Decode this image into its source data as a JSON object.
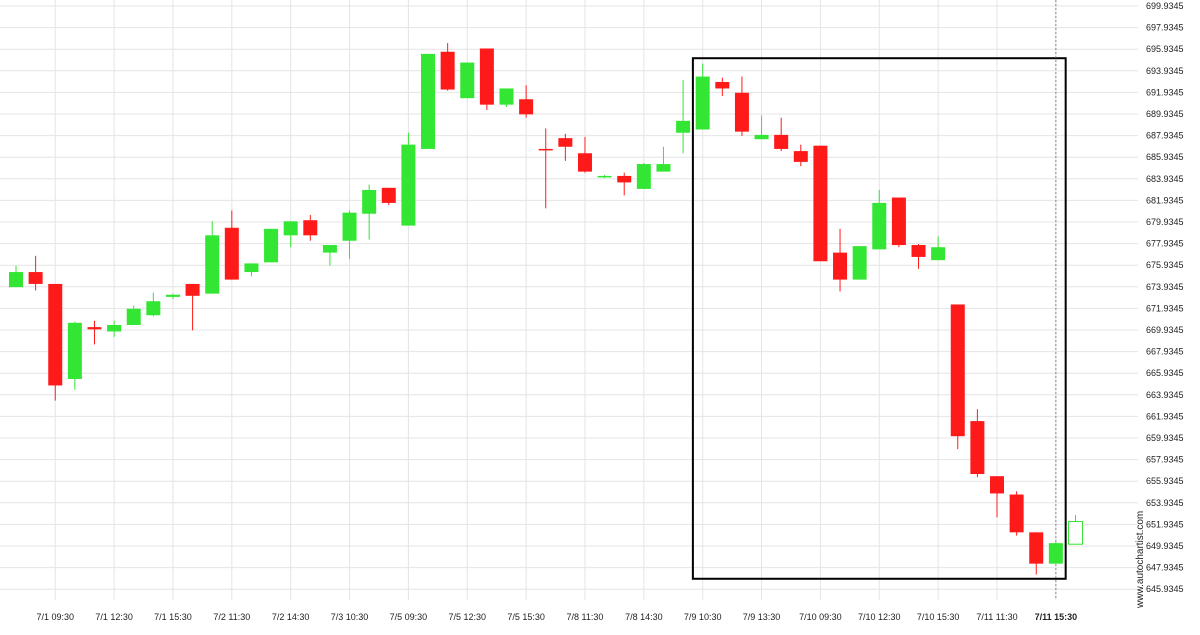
{
  "watermark": "www.autochartist.com",
  "colors": {
    "up": "#33e633",
    "down": "#ff1a1a",
    "grid": "#e4e4e4",
    "axis_text": "#222222",
    "box": "#000000",
    "marker": "#888888"
  },
  "chart_data": {
    "type": "candlestick",
    "title": "",
    "xlabel": "",
    "ylabel": "",
    "ylim": [
      644.9345,
      699.9345
    ],
    "grid": true,
    "y_ticks": [
      "699.9345",
      "697.9345",
      "695.9345",
      "693.9345",
      "691.9345",
      "689.9345",
      "687.9345",
      "685.9345",
      "683.9345",
      "681.9345",
      "679.9345",
      "677.9345",
      "675.9345",
      "673.9345",
      "671.9345",
      "669.9345",
      "667.9345",
      "665.9345",
      "663.9345",
      "661.9345",
      "659.9345",
      "657.9345",
      "655.9345",
      "653.9345",
      "651.9345",
      "649.9345",
      "647.9345",
      "645.9345"
    ],
    "x_ticks": [
      {
        "index": 2,
        "label": "7/1 09:30"
      },
      {
        "index": 5,
        "label": "7/1 12:30"
      },
      {
        "index": 8,
        "label": "7/1 15:30"
      },
      {
        "index": 11,
        "label": "7/2 11:30"
      },
      {
        "index": 14,
        "label": "7/2 14:30"
      },
      {
        "index": 17,
        "label": "7/3 10:30"
      },
      {
        "index": 20,
        "label": "7/5 09:30"
      },
      {
        "index": 23,
        "label": "7/5 12:30"
      },
      {
        "index": 26,
        "label": "7/5 15:30"
      },
      {
        "index": 29,
        "label": "7/8 11:30"
      },
      {
        "index": 32,
        "label": "7/8 14:30"
      },
      {
        "index": 35,
        "label": "7/9 10:30"
      },
      {
        "index": 38,
        "label": "7/9 13:30"
      },
      {
        "index": 41,
        "label": "7/10 09:30"
      },
      {
        "index": 44,
        "label": "7/10 12:30"
      },
      {
        "index": 47,
        "label": "7/10 15:30"
      },
      {
        "index": 50,
        "label": "7/11 11:30"
      },
      {
        "index": 53,
        "label": "7/11 15:30",
        "bold": true
      }
    ],
    "candles": [
      {
        "o": 673.9,
        "h": 675.9,
        "l": 673.9,
        "c": 675.3
      },
      {
        "o": 675.3,
        "h": 676.8,
        "l": 673.6,
        "c": 674.2
      },
      {
        "o": 674.2,
        "h": 674.2,
        "l": 663.4,
        "c": 664.8
      },
      {
        "o": 665.4,
        "h": 670.7,
        "l": 664.4,
        "c": 670.6
      },
      {
        "o": 670.2,
        "h": 670.8,
        "l": 668.6,
        "c": 670.0
      },
      {
        "o": 669.8,
        "h": 670.8,
        "l": 669.3,
        "c": 670.4
      },
      {
        "o": 670.4,
        "h": 672.2,
        "l": 670.4,
        "c": 671.9
      },
      {
        "o": 671.3,
        "h": 673.4,
        "l": 671.2,
        "c": 672.6
      },
      {
        "o": 673.0,
        "h": 673.3,
        "l": 672.8,
        "c": 673.2
      },
      {
        "o": 674.2,
        "h": 674.2,
        "l": 669.9,
        "c": 673.1
      },
      {
        "o": 673.3,
        "h": 680.0,
        "l": 673.3,
        "c": 678.7
      },
      {
        "o": 679.4,
        "h": 681.0,
        "l": 674.6,
        "c": 674.6
      },
      {
        "o": 675.3,
        "h": 676.1,
        "l": 674.9,
        "c": 676.1
      },
      {
        "o": 676.2,
        "h": 679.3,
        "l": 676.2,
        "c": 679.3
      },
      {
        "o": 678.7,
        "h": 680.0,
        "l": 677.6,
        "c": 680.0
      },
      {
        "o": 680.1,
        "h": 680.6,
        "l": 678.2,
        "c": 678.7
      },
      {
        "o": 677.1,
        "h": 677.8,
        "l": 675.9,
        "c": 677.8
      },
      {
        "o": 678.2,
        "h": 681.0,
        "l": 676.5,
        "c": 680.8
      },
      {
        "o": 680.7,
        "h": 683.4,
        "l": 678.3,
        "c": 682.9
      },
      {
        "o": 683.1,
        "h": 683.1,
        "l": 681.5,
        "c": 681.7
      },
      {
        "o": 679.6,
        "h": 688.2,
        "l": 679.6,
        "c": 687.1
      },
      {
        "o": 686.7,
        "h": 695.5,
        "l": 686.7,
        "c": 695.5
      },
      {
        "o": 695.7,
        "h": 696.5,
        "l": 692.1,
        "c": 692.2
      },
      {
        "o": 691.4,
        "h": 694.7,
        "l": 691.4,
        "c": 694.7
      },
      {
        "o": 696.0,
        "h": 696.0,
        "l": 690.3,
        "c": 690.8
      },
      {
        "o": 690.8,
        "h": 692.3,
        "l": 690.6,
        "c": 692.3
      },
      {
        "o": 691.3,
        "h": 692.6,
        "l": 689.6,
        "c": 689.9
      },
      {
        "o": 686.7,
        "h": 688.6,
        "l": 681.2,
        "c": 686.6
      },
      {
        "o": 687.7,
        "h": 688.1,
        "l": 685.6,
        "c": 686.9
      },
      {
        "o": 686.3,
        "h": 687.8,
        "l": 684.5,
        "c": 684.6
      },
      {
        "o": 684.1,
        "h": 684.3,
        "l": 684.0,
        "c": 684.2
      },
      {
        "o": 684.2,
        "h": 684.5,
        "l": 682.4,
        "c": 683.6
      },
      {
        "o": 683.0,
        "h": 685.4,
        "l": 683.0,
        "c": 685.3
      },
      {
        "o": 684.6,
        "h": 686.9,
        "l": 684.6,
        "c": 685.3
      },
      {
        "o": 688.2,
        "h": 693.1,
        "l": 686.3,
        "c": 689.3
      },
      {
        "o": 688.5,
        "h": 694.6,
        "l": 688.5,
        "c": 693.4
      },
      {
        "o": 692.9,
        "h": 693.3,
        "l": 691.6,
        "c": 692.3
      },
      {
        "o": 691.9,
        "h": 693.4,
        "l": 687.9,
        "c": 688.3
      },
      {
        "o": 687.6,
        "h": 689.8,
        "l": 687.6,
        "c": 688.0
      },
      {
        "o": 688.0,
        "h": 689.6,
        "l": 686.5,
        "c": 686.7
      },
      {
        "o": 686.5,
        "h": 687.1,
        "l": 685.1,
        "c": 685.5
      },
      {
        "o": 687.0,
        "h": 687.0,
        "l": 676.3,
        "c": 676.3
      },
      {
        "o": 677.1,
        "h": 679.3,
        "l": 673.5,
        "c": 674.6
      },
      {
        "o": 674.6,
        "h": 677.7,
        "l": 674.6,
        "c": 677.7
      },
      {
        "o": 677.4,
        "h": 682.9,
        "l": 677.4,
        "c": 681.7
      },
      {
        "o": 682.2,
        "h": 682.2,
        "l": 677.6,
        "c": 677.8
      },
      {
        "o": 677.8,
        "h": 677.9,
        "l": 675.6,
        "c": 676.7
      },
      {
        "o": 676.4,
        "h": 678.6,
        "l": 676.4,
        "c": 677.6
      },
      {
        "o": 672.3,
        "h": 672.3,
        "l": 658.9,
        "c": 660.1
      },
      {
        "o": 661.5,
        "h": 662.6,
        "l": 656.3,
        "c": 656.6
      },
      {
        "o": 656.4,
        "h": 656.4,
        "l": 652.6,
        "c": 654.8
      },
      {
        "o": 654.7,
        "h": 655.0,
        "l": 650.9,
        "c": 651.2
      },
      {
        "o": 651.2,
        "h": 651.2,
        "l": 647.3,
        "c": 648.3
      },
      {
        "o": 648.3,
        "h": 650.3,
        "l": 648.3,
        "c": 650.2
      },
      {
        "o": 650.1,
        "h": 652.8,
        "l": 650.1,
        "c": 652.2,
        "hollow": true
      }
    ],
    "highlight_box": {
      "from_index": 34.5,
      "to_index": 53.5,
      "high": 695.1,
      "low": 646.9
    },
    "current_marker_index": 53
  }
}
